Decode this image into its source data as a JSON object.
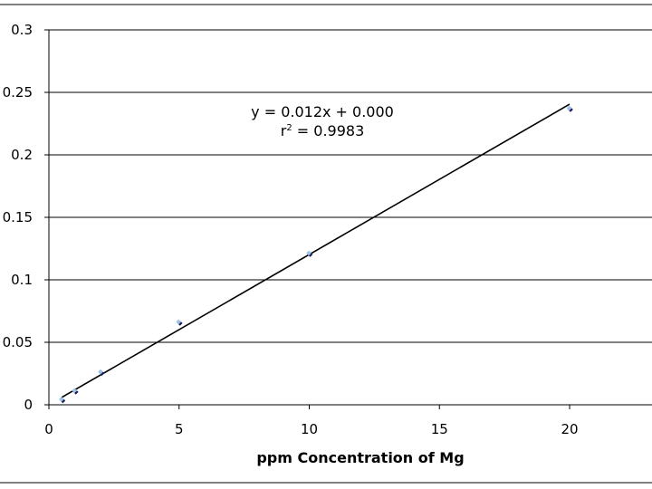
{
  "chart_data": {
    "type": "scatter",
    "title": "",
    "xlabel": "ppm Concentration of Mg",
    "ylabel": "",
    "xlim": [
      0,
      24
    ],
    "ylim": [
      0,
      0.3
    ],
    "x_ticks": [
      "0",
      "5",
      "10",
      "15",
      "20"
    ],
    "y_ticks": [
      "0",
      "0.05",
      "0.1",
      "0.15",
      "0.2",
      "0.25",
      "0.3"
    ],
    "grid": "horizontal",
    "legend": "none",
    "series": [
      {
        "x": [
          0.5,
          1,
          2,
          5,
          10,
          20
        ],
        "y": [
          0.004,
          0.011,
          0.026,
          0.066,
          0.121,
          0.237
        ]
      }
    ],
    "trendline": {
      "x": [
        0.5,
        20
      ],
      "y": [
        0.006,
        0.2405
      ],
      "equation": "y = 0.012x + 0.000",
      "r2_prefix": "r",
      "r2_sup": "2",
      "r2_value": " = 0.9983"
    },
    "colors": {
      "marker_fill": "#9cc3e6",
      "marker_shadow": "#1a1a5c",
      "line": "#000000",
      "grid": "#000000"
    }
  }
}
